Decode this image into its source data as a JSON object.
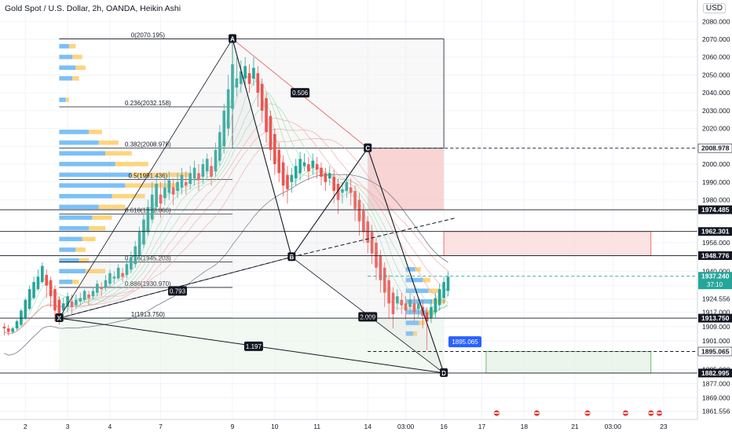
{
  "chart_title": "Gold Spot / U.S. Dollar, 2h, OANDA, Heikin Ashi",
  "currency": "USD",
  "chart_data": {
    "type": "candlestick",
    "symbol": "XAUUSD",
    "timeframe": "2h",
    "ylim": [
      1857.0,
      2092.0
    ],
    "xlim": [
      0,
      110
    ],
    "price_ticks": [
      "2080.000",
      "2070.000",
      "2060.000",
      "2050.000",
      "2040.000",
      "2030.000",
      "2020.000",
      "2010.000",
      "2000.000",
      "1990.000",
      "1980.000",
      "1956.000",
      "1940.000",
      "1932.000",
      "1924.556",
      "1917.000",
      "1909.000",
      "1901.000",
      "1885.000",
      "1877.000",
      "1869.000",
      "1861.556"
    ],
    "time_ticks": [
      {
        "label": "2",
        "x": 6
      },
      {
        "label": "3",
        "x": 16
      },
      {
        "label": "4",
        "x": 26
      },
      {
        "label": "7",
        "x": 38
      },
      {
        "label": "9",
        "x": 55
      },
      {
        "label": "10",
        "x": 65
      },
      {
        "label": "11",
        "x": 75
      },
      {
        "label": "14",
        "x": 87
      },
      {
        "label": "03:00",
        "x": 96
      },
      {
        "label": "16",
        "x": 105
      },
      {
        "label": "17",
        "x": 114
      },
      {
        "label": "18",
        "x": 124
      },
      {
        "label": "21",
        "x": 136
      },
      {
        "label": "03:00",
        "x": 145
      },
      {
        "label": "23",
        "x": 157
      }
    ],
    "price_labels": [
      {
        "value": 2008.978,
        "label": "2008.978",
        "bg": "#ffffff",
        "fg": "#131722"
      },
      {
        "value": 1974.485,
        "label": "1974.485",
        "bg": "#131722",
        "fg": "#ffffff"
      },
      {
        "value": 1962.301,
        "label": "1962.301",
        "bg": "#131722",
        "fg": "#ffffff"
      },
      {
        "value": 1948.776,
        "label": "1948.776",
        "bg": "#131722",
        "fg": "#ffffff"
      },
      {
        "value": 1937.24,
        "label": "1937.240",
        "bg": "#26a69a",
        "fg": "#ffffff",
        "sub": "37:10"
      },
      {
        "value": 1913.75,
        "label": "1913.750",
        "bg": "#131722",
        "fg": "#ffffff"
      },
      {
        "value": 1895.065,
        "label": "1895.065",
        "bg": "#ffffff",
        "fg": "#131722"
      },
      {
        "value": 1882.995,
        "label": "1882.995",
        "bg": "#131722",
        "fg": "#ffffff"
      }
    ],
    "harmonic_pattern": {
      "points": [
        {
          "label": "X",
          "x": 14,
          "price": 1913.75
        },
        {
          "label": "A",
          "x": 55,
          "price": 2070.195
        },
        {
          "label": "B",
          "x": 69,
          "price": 1948.0
        },
        {
          "label": "C",
          "x": 87,
          "price": 2008.978
        },
        {
          "label": "D",
          "x": 105,
          "price": 1882.995
        }
      ],
      "ratios": [
        {
          "label": "0.506",
          "x": 71,
          "price": 2040.0
        },
        {
          "label": "0.793",
          "x": 42,
          "price": 1929.0
        },
        {
          "label": "2.009",
          "x": 87,
          "price": 1914.5
        },
        {
          "label": "1.197",
          "x": 60,
          "price": 1898.0
        }
      ]
    },
    "fibonacci": [
      {
        "label": "0(2070.195)",
        "price": 2070.195
      },
      {
        "label": "0.236(2032.158)",
        "price": 2032.158
      },
      {
        "label": "0.382(2008.978)",
        "price": 2008.978
      },
      {
        "label": "0.5(1991.436)",
        "price": 1991.436
      },
      {
        "label": "0.618(1972.066)",
        "price": 1972.066
      },
      {
        "label": "0.786(1945.203)",
        "price": 1945.203
      },
      {
        "label": "0.886(1930.970)",
        "price": 1930.97
      },
      {
        "label": "1(1913.750)",
        "price": 1913.75
      }
    ],
    "callout": {
      "label": "1895.065",
      "x": 110,
      "price": 1900.5
    },
    "zones": [
      {
        "name": "supply-zone",
        "x0": 87,
        "x1": 105,
        "top": 2008.978,
        "bottom": 1974.485,
        "color": "#f7c6c6"
      },
      {
        "name": "upper-box",
        "x0": 105,
        "x1": 154,
        "top": 1962.301,
        "bottom": 1948.776,
        "color": "#fbd9d9"
      },
      {
        "name": "target-box",
        "x0": 115,
        "x1": 154,
        "top": 1895.065,
        "bottom": 1882.995,
        "color": "#e4f2e4"
      },
      {
        "name": "xd-box",
        "x0": 14,
        "x1": 105,
        "top": 1913.75,
        "bottom": 1882.995,
        "color": "#eef6ee"
      },
      {
        "name": "ac-box",
        "x0": 55,
        "x1": 105,
        "top": 2070.195,
        "bottom": 2008.978,
        "color": "#f3f3f3"
      }
    ],
    "candles": [
      [
        1909,
        1908,
        1904,
        1911
      ],
      [
        1908,
        1906,
        1904,
        1910
      ],
      [
        1906,
        1908,
        1905,
        1909
      ],
      [
        1908,
        1912,
        1907,
        1913
      ],
      [
        1910,
        1918,
        1909,
        1919
      ],
      [
        1914,
        1924,
        1913,
        1925
      ],
      [
        1919,
        1930,
        1918,
        1932
      ],
      [
        1925,
        1934,
        1924,
        1937
      ],
      [
        1930,
        1937,
        1929,
        1941
      ],
      [
        1934,
        1943,
        1933,
        1945
      ],
      [
        1938,
        1932,
        1925,
        1941
      ],
      [
        1935,
        1926,
        1920,
        1937
      ],
      [
        1930,
        1918,
        1912,
        1932
      ],
      [
        1924,
        1913,
        1910,
        1926
      ],
      [
        1918,
        1922,
        1912,
        1925
      ],
      [
        1920,
        1926,
        1917,
        1928
      ],
      [
        1923,
        1920,
        1916,
        1927
      ],
      [
        1921,
        1924,
        1919,
        1927
      ],
      [
        1923,
        1925,
        1921,
        1928
      ],
      [
        1924,
        1929,
        1923,
        1930
      ],
      [
        1927,
        1925,
        1921,
        1929
      ],
      [
        1926,
        1929,
        1924,
        1931
      ],
      [
        1928,
        1933,
        1926,
        1935
      ],
      [
        1931,
        1930,
        1926,
        1934
      ],
      [
        1931,
        1935,
        1929,
        1938
      ],
      [
        1933,
        1939,
        1931,
        1941
      ],
      [
        1936,
        1937,
        1933,
        1940
      ],
      [
        1936,
        1942,
        1935,
        1944
      ],
      [
        1939,
        1937,
        1934,
        1942
      ],
      [
        1938,
        1944,
        1936,
        1947
      ],
      [
        1941,
        1948,
        1939,
        1951
      ],
      [
        1944,
        1954,
        1942,
        1957
      ],
      [
        1949,
        1962,
        1947,
        1965
      ],
      [
        1955,
        1969,
        1953,
        1972
      ],
      [
        1962,
        1976,
        1960,
        1980
      ],
      [
        1969,
        1983,
        1967,
        1990
      ],
      [
        1976,
        1989,
        1973,
        1994
      ],
      [
        1983,
        1978,
        1970,
        1990
      ],
      [
        1981,
        1987,
        1977,
        1993
      ],
      [
        1984,
        1991,
        1980,
        1996
      ],
      [
        1987,
        1983,
        1977,
        1992
      ],
      [
        1985,
        1990,
        1981,
        1995
      ],
      [
        1987,
        1994,
        1983,
        1998
      ],
      [
        1990,
        1988,
        1983,
        1996
      ],
      [
        1989,
        1995,
        1986,
        1999
      ],
      [
        1992,
        1998,
        1988,
        2002
      ],
      [
        1995,
        1991,
        1985,
        2000
      ],
      [
        1993,
        2000,
        1989,
        2003
      ],
      [
        1996,
        2003,
        1992,
        2006
      ],
      [
        1999,
        1993,
        1988,
        2004
      ],
      [
        1996,
        2008,
        1993,
        2012
      ],
      [
        2002,
        2018,
        1999,
        2022
      ],
      [
        2010,
        2030,
        2006,
        2034
      ],
      [
        2020,
        2042,
        2016,
        2050
      ],
      [
        2031,
        2056,
        2028,
        2070
      ],
      [
        2043,
        2048,
        2038,
        2060
      ],
      [
        2045,
        2052,
        2040,
        2058
      ],
      [
        2048,
        2055,
        2043,
        2060
      ],
      [
        2051,
        2045,
        2040,
        2056
      ],
      [
        2048,
        2054,
        2044,
        2060
      ],
      [
        2051,
        2040,
        2032,
        2055
      ],
      [
        2045,
        2030,
        2024,
        2048
      ],
      [
        2037,
        2018,
        2012,
        2040
      ],
      [
        2027,
        2008,
        2002,
        2030
      ],
      [
        2017,
        2000,
        1994,
        2020
      ],
      [
        2008,
        1995,
        1990,
        2012
      ],
      [
        2001,
        1988,
        1982,
        2005
      ],
      [
        1994,
        1986,
        1978,
        1999
      ],
      [
        1990,
        1994,
        1984,
        1998
      ],
      [
        1992,
        1999,
        1988,
        2003
      ],
      [
        1995,
        2003,
        1991,
        2007
      ],
      [
        1999,
        2001,
        1996,
        2006
      ],
      [
        2000,
        1996,
        1991,
        2004
      ],
      [
        1998,
        2002,
        1994,
        2006
      ],
      [
        2000,
        1997,
        1992,
        2004
      ],
      [
        1998,
        1993,
        1988,
        2001
      ],
      [
        1995,
        1990,
        1985,
        1998
      ],
      [
        1992,
        1995,
        1988,
        1999
      ],
      [
        1993,
        1985,
        1978,
        1997
      ],
      [
        1989,
        1980,
        1972,
        1992
      ],
      [
        1984,
        1986,
        1978,
        1990
      ],
      [
        1985,
        1990,
        1981,
        1994
      ],
      [
        1987,
        1984,
        1977,
        1992
      ],
      [
        1985,
        1975,
        1968,
        1988
      ],
      [
        1980,
        1968,
        1960,
        1984
      ],
      [
        1974,
        1962,
        1956,
        1978
      ],
      [
        1968,
        1956,
        1950,
        1971
      ],
      [
        1962,
        1950,
        1944,
        1966
      ],
      [
        1956,
        1942,
        1935,
        1959
      ],
      [
        1949,
        1935,
        1928,
        1952
      ],
      [
        1942,
        1928,
        1920,
        1945
      ],
      [
        1935,
        1922,
        1914,
        1938
      ],
      [
        1928,
        1916,
        1908,
        1931
      ],
      [
        1922,
        1926,
        1918,
        1930
      ],
      [
        1924,
        1921,
        1916,
        1928
      ],
      [
        1922,
        1918,
        1913,
        1926
      ],
      [
        1920,
        1924,
        1916,
        1928
      ],
      [
        1922,
        1917,
        1912,
        1926
      ],
      [
        1919,
        1922,
        1914,
        1925
      ],
      [
        1920,
        1915,
        1908,
        1924
      ],
      [
        1917,
        1912,
        1896,
        1920
      ],
      [
        1914,
        1920,
        1911,
        1924
      ],
      [
        1917,
        1925,
        1914,
        1928
      ],
      [
        1921,
        1930,
        1918,
        1933
      ],
      [
        1925,
        1934,
        1922,
        1937
      ],
      [
        1929,
        1937,
        1926,
        1940
      ]
    ],
    "volume_profile": [
      {
        "price": 2066,
        "blue": 3,
        "yellow": 2
      },
      {
        "price": 2060,
        "blue": 4,
        "yellow": 3
      },
      {
        "price": 2054,
        "blue": 5,
        "yellow": 3
      },
      {
        "price": 2048,
        "blue": 4,
        "yellow": 2
      },
      {
        "price": 2036,
        "blue": 2,
        "yellow": 1
      },
      {
        "price": 2018,
        "blue": 9,
        "yellow": 4
      },
      {
        "price": 2012,
        "blue": 12,
        "yellow": 6
      },
      {
        "price": 2006,
        "blue": 14,
        "yellow": 8
      },
      {
        "price": 2000,
        "blue": 17,
        "yellow": 10
      },
      {
        "price": 1994,
        "blue": 22,
        "yellow": 18
      },
      {
        "price": 1988,
        "blue": 20,
        "yellow": 16
      },
      {
        "price": 1982,
        "blue": 16,
        "yellow": 10
      },
      {
        "price": 1976,
        "blue": 12,
        "yellow": 8
      },
      {
        "price": 1970,
        "blue": 10,
        "yellow": 6
      },
      {
        "price": 1964,
        "blue": 9,
        "yellow": 5
      },
      {
        "price": 1958,
        "blue": 7,
        "yellow": 4
      },
      {
        "price": 1952,
        "blue": 5,
        "yellow": 3
      },
      {
        "price": 1946,
        "blue": 6,
        "yellow": 3
      },
      {
        "price": 1940,
        "blue": 8,
        "yellow": 6
      },
      {
        "price": 1934,
        "blue": 4,
        "yellow": 2
      }
    ]
  },
  "colors": {
    "up": "#26a69a",
    "down": "#ef5350",
    "pattern": "#131722",
    "grid": "#f0f3fa"
  }
}
